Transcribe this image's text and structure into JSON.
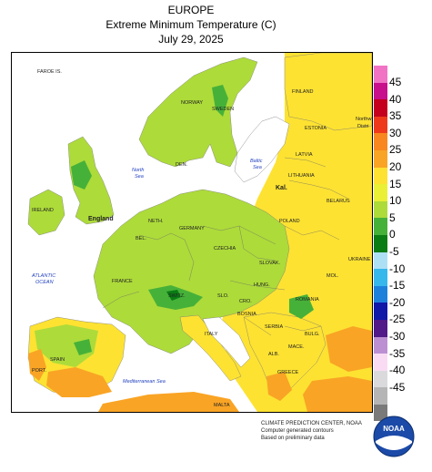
{
  "header": {
    "region": "EUROPE",
    "product": "Extreme Minimum Temperature (C)",
    "date": "July 29, 2025"
  },
  "legend": {
    "units": "C",
    "bins": [
      {
        "label": "45",
        "color": "#f073c4"
      },
      {
        "label": "40",
        "color": "#c80f8c"
      },
      {
        "label": "35",
        "color": "#c4001e"
      },
      {
        "label": "30",
        "color": "#ee3a1b"
      },
      {
        "label": "25",
        "color": "#f9871f"
      },
      {
        "label": "20",
        "color": "#f9a425"
      },
      {
        "label": "15",
        "color": "#fde232"
      },
      {
        "label": "10",
        "color": "#e9f035"
      },
      {
        "label": "5",
        "color": "#addb3a"
      },
      {
        "label": "0",
        "color": "#46b139"
      },
      {
        "label": "-5",
        "color": "#097c14"
      },
      {
        "label": "-10",
        "color": "#aee0f5"
      },
      {
        "label": "-15",
        "color": "#37b8ec"
      },
      {
        "label": "-20",
        "color": "#1d81dc"
      },
      {
        "label": "-25",
        "color": "#1018a8"
      },
      {
        "label": "-30",
        "color": "#521988"
      },
      {
        "label": "-35",
        "color": "#bc8fd2"
      },
      {
        "label": "-40",
        "color": "#f9dcf3"
      },
      {
        "label": "-45",
        "color": "#dadadc"
      },
      {
        "label": "",
        "color": "#b5b5b5"
      },
      {
        "label": "",
        "color": "#7a7a7a"
      }
    ]
  },
  "map": {
    "countries": [
      {
        "key": "faroe",
        "label": "FAROE IS."
      },
      {
        "key": "norway",
        "label": "NORWAY"
      },
      {
        "key": "sweden",
        "label": "SWEDEN"
      },
      {
        "key": "finland",
        "label": "FINLAND"
      },
      {
        "key": "estonia",
        "label": "ESTONIA"
      },
      {
        "key": "northwest",
        "label": "Northw"
      },
      {
        "key": "distr",
        "label": "Distri"
      },
      {
        "key": "latvia",
        "label": "LATVIA"
      },
      {
        "key": "lithuania",
        "label": "LITHUANIA"
      },
      {
        "key": "belarus",
        "label": "BELARUS"
      },
      {
        "key": "denmark",
        "label": "DEN."
      },
      {
        "key": "england",
        "label": "England"
      },
      {
        "key": "ireland",
        "label": "IRELAND"
      },
      {
        "key": "neth",
        "label": "NETH."
      },
      {
        "key": "germany",
        "label": "GERMANY"
      },
      {
        "key": "poland",
        "label": "POLAND"
      },
      {
        "key": "bel",
        "label": "BEL."
      },
      {
        "key": "czechia",
        "label": "CZECHIA"
      },
      {
        "key": "slovak",
        "label": "SLOVAK."
      },
      {
        "key": "ukraine",
        "label": "UKRAINE"
      },
      {
        "key": "france",
        "label": "FRANCE"
      },
      {
        "key": "switz",
        "label": "SWITZ."
      },
      {
        "key": "slo",
        "label": "SLO."
      },
      {
        "key": "hung",
        "label": "HUNG."
      },
      {
        "key": "mol",
        "label": "MOL."
      },
      {
        "key": "romania",
        "label": "ROMANIA"
      },
      {
        "key": "cro",
        "label": "CRO."
      },
      {
        "key": "bosnia",
        "label": "BOSNIA"
      },
      {
        "key": "serbia",
        "label": "SERBIA"
      },
      {
        "key": "bulg",
        "label": "BULG."
      },
      {
        "key": "mace",
        "label": "MACE."
      },
      {
        "key": "alb",
        "label": "ALB."
      },
      {
        "key": "italy",
        "label": "ITALY"
      },
      {
        "key": "spain",
        "label": "SPAIN"
      },
      {
        "key": "port",
        "label": "PORT."
      },
      {
        "key": "greece",
        "label": "GREECE"
      },
      {
        "key": "malta",
        "label": "MALTA"
      },
      {
        "key": "kal",
        "label": "Kal."
      }
    ],
    "seas": [
      {
        "key": "north_sea_1",
        "label": "North"
      },
      {
        "key": "north_sea_2",
        "label": "Sea"
      },
      {
        "key": "baltic_1",
        "label": "Baltic"
      },
      {
        "key": "baltic_2",
        "label": "Sea"
      },
      {
        "key": "atlantic_1",
        "label": "ATLANTIC"
      },
      {
        "key": "atlantic_2",
        "label": "OCEAN"
      },
      {
        "key": "med",
        "label": "Mediterranean Sea"
      }
    ]
  },
  "credits": {
    "line1": "CLIMATE PREDICTION CENTER, NOAA",
    "line2": "Computer generated contours",
    "line3": "Based on preliminary data"
  },
  "logo": {
    "text": "NOAA"
  }
}
